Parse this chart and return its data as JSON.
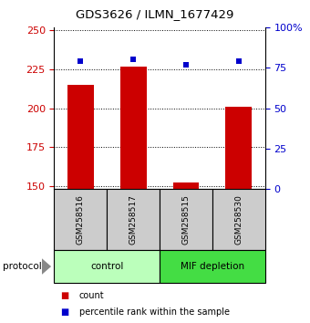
{
  "title": "GDS3626 / ILMN_1677429",
  "samples": [
    "GSM258516",
    "GSM258517",
    "GSM258515",
    "GSM258530"
  ],
  "counts": [
    215,
    227,
    152,
    201
  ],
  "percentile_ranks": [
    79,
    80,
    77,
    79
  ],
  "ylim_left": [
    148,
    252
  ],
  "ylim_right": [
    0,
    100
  ],
  "yticks_left": [
    150,
    175,
    200,
    225,
    250
  ],
  "yticks_right": [
    0,
    25,
    50,
    75,
    100
  ],
  "ytick_labels_right": [
    "0",
    "25",
    "50",
    "75",
    "100%"
  ],
  "bar_color": "#cc0000",
  "dot_color": "#0000cc",
  "groups": [
    {
      "label": "control",
      "indices": [
        0,
        1
      ],
      "color": "#bbffbb"
    },
    {
      "label": "MIF depletion",
      "indices": [
        2,
        3
      ],
      "color": "#44dd44"
    }
  ],
  "protocol_label": "protocol",
  "legend_count_label": "count",
  "legend_pct_label": "percentile rank within the sample",
  "sample_box_color": "#cccccc",
  "background_color": "#ffffff",
  "bar_width": 0.5
}
